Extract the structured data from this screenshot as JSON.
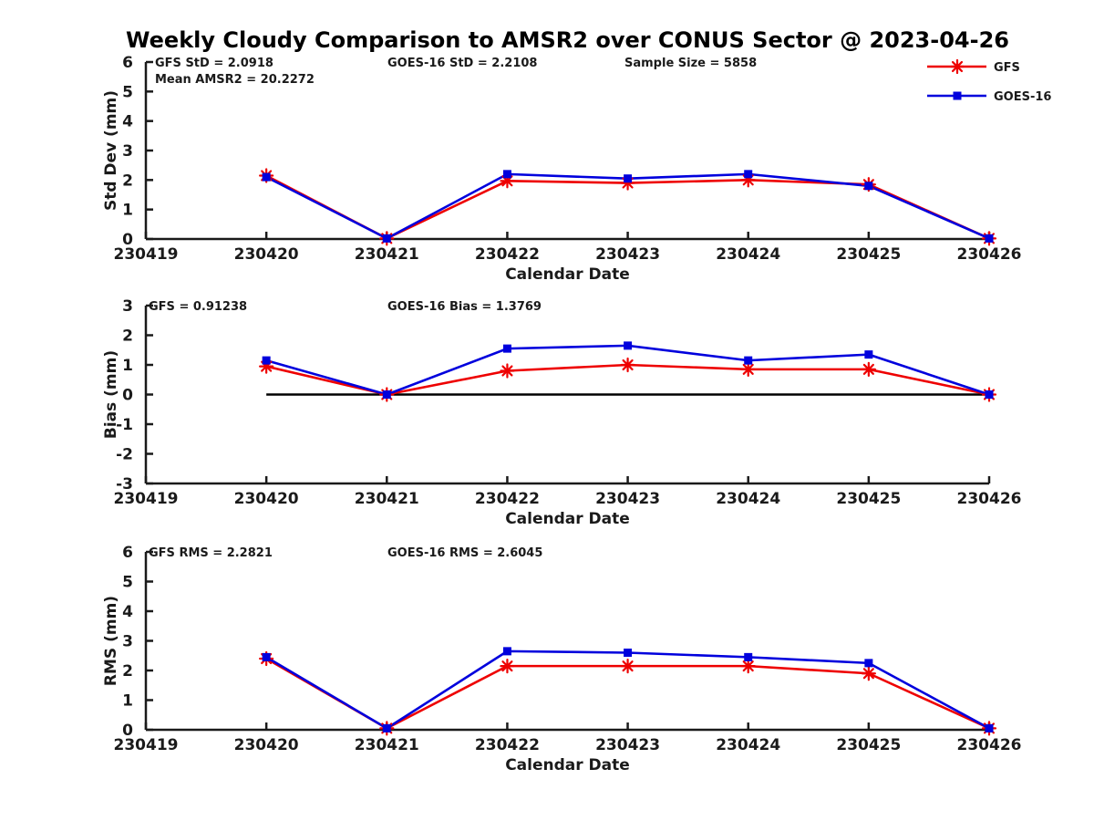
{
  "title": "Weekly Cloudy Comparison to AMSR2 over CONUS Sector @ 2023-04-26",
  "colors": {
    "gfs": "#ee0000",
    "goes16": "#0000dd",
    "axis": "#1a1a1a",
    "zero_line": "#000000",
    "background": "#ffffff"
  },
  "legend": {
    "position": "top-right",
    "items": [
      {
        "label": "GFS",
        "color": "#ee0000",
        "marker": "asterisk"
      },
      {
        "label": "GOES-16",
        "color": "#0000dd",
        "marker": "square"
      }
    ]
  },
  "chart_data": [
    {
      "type": "line",
      "name": "std-dev",
      "ylabel": "Std Dev (mm)",
      "xlabel": "Calendar Date",
      "ylim": [
        0,
        6
      ],
      "ytick_step": 1,
      "grid": false,
      "categories": [
        "230419",
        "230420",
        "230421",
        "230422",
        "230423",
        "230424",
        "230425",
        "230426"
      ],
      "x": [
        "230420",
        "230421",
        "230422",
        "230423",
        "230424",
        "230425",
        "230426"
      ],
      "series": [
        {
          "name": "GFS",
          "color": "#ee0000",
          "marker": "asterisk",
          "values": [
            2.15,
            0.02,
            1.97,
            1.9,
            2.0,
            1.85,
            0.02
          ]
        },
        {
          "name": "GOES-16",
          "color": "#0000dd",
          "marker": "square",
          "values": [
            2.1,
            0.02,
            2.2,
            2.05,
            2.2,
            1.8,
            0.02
          ]
        }
      ],
      "zero_line": false,
      "annotations": [
        {
          "text": "GFS StD = 2.0918",
          "x": 170,
          "line": 0
        },
        {
          "text": "Mean AMSR2 = 20.2272",
          "x": 170,
          "line": 1
        },
        {
          "text": "GOES-16 StD = 2.2108",
          "x": 425,
          "line": 0
        },
        {
          "text": "Sample Size = 5858",
          "x": 685,
          "line": 0
        }
      ]
    },
    {
      "type": "line",
      "name": "bias",
      "ylabel": "Bias (mm)",
      "xlabel": "Calendar Date",
      "ylim": [
        -3,
        3
      ],
      "ytick_step": 1,
      "grid": false,
      "categories": [
        "230419",
        "230420",
        "230421",
        "230422",
        "230423",
        "230424",
        "230425",
        "230426"
      ],
      "x": [
        "230420",
        "230421",
        "230422",
        "230423",
        "230424",
        "230425",
        "230426"
      ],
      "series": [
        {
          "name": "GFS",
          "color": "#ee0000",
          "marker": "asterisk",
          "values": [
            0.95,
            0.0,
            0.8,
            1.0,
            0.85,
            0.85,
            0.0
          ]
        },
        {
          "name": "GOES-16",
          "color": "#0000dd",
          "marker": "square",
          "values": [
            1.15,
            0.0,
            1.55,
            1.65,
            1.15,
            1.35,
            0.0
          ]
        }
      ],
      "zero_line": true,
      "annotations": [
        {
          "text": "GFS = 0.91238",
          "x": 163,
          "line": 0
        },
        {
          "text": "GOES-16 Bias  = 1.3769",
          "x": 425,
          "line": 0
        }
      ]
    },
    {
      "type": "line",
      "name": "rms",
      "ylabel": "RMS (mm)",
      "xlabel": "Calendar Date",
      "ylim": [
        0,
        6
      ],
      "ytick_step": 1,
      "grid": false,
      "categories": [
        "230419",
        "230420",
        "230421",
        "230422",
        "230423",
        "230424",
        "230425",
        "230426"
      ],
      "x": [
        "230420",
        "230421",
        "230422",
        "230423",
        "230424",
        "230425",
        "230426"
      ],
      "series": [
        {
          "name": "GFS",
          "color": "#ee0000",
          "marker": "asterisk",
          "values": [
            2.4,
            0.05,
            2.15,
            2.15,
            2.15,
            1.9,
            0.05
          ]
        },
        {
          "name": "GOES-16",
          "color": "#0000dd",
          "marker": "square",
          "values": [
            2.45,
            0.05,
            2.65,
            2.6,
            2.45,
            2.25,
            0.05
          ]
        }
      ],
      "zero_line": false,
      "annotations": [
        {
          "text": "GFS RMS = 2.2821",
          "x": 163,
          "line": 0
        },
        {
          "text": "GOES-16 RMS = 2.6045",
          "x": 425,
          "line": 0
        }
      ]
    }
  ]
}
